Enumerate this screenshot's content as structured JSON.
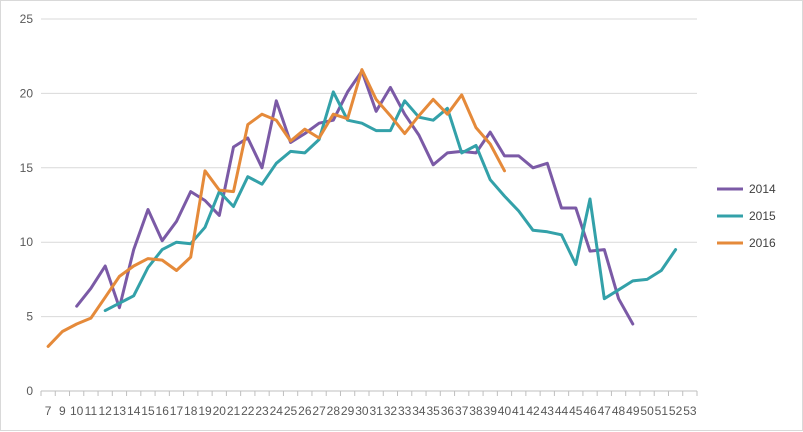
{
  "chart_data": {
    "type": "line",
    "title": "",
    "xlabel": "",
    "ylabel": "",
    "ylim": [
      0,
      25
    ],
    "y_ticks": [
      0,
      5,
      10,
      15,
      20,
      25
    ],
    "grid": "horizontal",
    "legend_position": "right",
    "x": [
      "7",
      "9",
      "10",
      "11",
      "12",
      "13",
      "14",
      "15",
      "16",
      "17",
      "18",
      "19",
      "20",
      "21",
      "22",
      "23",
      "24",
      "25",
      "26",
      "27",
      "28",
      "29",
      "30",
      "31",
      "32",
      "33",
      "34",
      "35",
      "36",
      "37",
      "38",
      "39",
      "40",
      "41",
      "42",
      "43",
      "44",
      "45",
      "46",
      "47",
      "48",
      "49",
      "50",
      "51",
      "52",
      "53"
    ],
    "x_tick_labels": [
      "7",
      "9",
      "10",
      "11",
      "12",
      "13",
      "14",
      "15",
      "16",
      "17",
      "18",
      "19",
      "20",
      "21",
      "22",
      "23",
      "24",
      "25",
      "26",
      "27",
      "28",
      "29",
      "30",
      "31",
      "32",
      "33",
      "34",
      "35",
      "36",
      "37",
      "38",
      "39",
      "40",
      "41",
      "42",
      "43",
      "44",
      "45",
      "46",
      "47",
      "48",
      "49",
      "50",
      "51",
      "52",
      "53"
    ],
    "series": [
      {
        "name": "2014",
        "color": "#7b5aa6",
        "values": [
          null,
          null,
          5.7,
          6.9,
          8.4,
          5.6,
          9.5,
          12.2,
          10.1,
          11.4,
          13.4,
          12.8,
          11.8,
          16.4,
          17.0,
          15.0,
          19.5,
          16.7,
          17.3,
          18.0,
          18.2,
          20.1,
          21.5,
          18.8,
          20.4,
          18.6,
          17.2,
          15.2,
          16.0,
          16.1,
          16.0,
          17.4,
          15.8,
          15.8,
          15.0,
          15.3,
          12.3,
          12.3,
          9.4,
          9.5,
          6.2,
          4.5,
          null,
          null,
          null,
          null
        ]
      },
      {
        "name": "2015",
        "color": "#33a1a9",
        "values": [
          null,
          null,
          null,
          null,
          5.4,
          5.9,
          6.4,
          8.3,
          9.5,
          10.0,
          9.9,
          11.0,
          13.4,
          12.4,
          14.4,
          13.9,
          15.3,
          16.1,
          16.0,
          16.9,
          20.1,
          18.2,
          18.0,
          17.5,
          17.5,
          19.5,
          18.4,
          18.2,
          19.0,
          16.0,
          16.5,
          14.2,
          13.1,
          12.1,
          10.8,
          10.7,
          10.5,
          8.5,
          12.9,
          6.2,
          6.8,
          7.4,
          7.5,
          8.1,
          9.5,
          null
        ]
      },
      {
        "name": "2016",
        "color": "#e58a3a",
        "values": [
          3.0,
          4.0,
          4.5,
          4.9,
          6.3,
          7.7,
          8.4,
          8.9,
          8.8,
          8.1,
          9.0,
          14.8,
          13.5,
          13.4,
          17.9,
          18.6,
          18.2,
          16.8,
          17.6,
          17.0,
          18.6,
          18.3,
          21.6,
          19.6,
          18.5,
          17.3,
          18.5,
          19.6,
          18.6,
          19.9,
          17.7,
          16.6,
          14.8,
          null,
          null,
          null,
          null,
          null,
          null,
          null,
          null,
          null,
          null,
          null,
          null,
          null
        ]
      }
    ]
  }
}
